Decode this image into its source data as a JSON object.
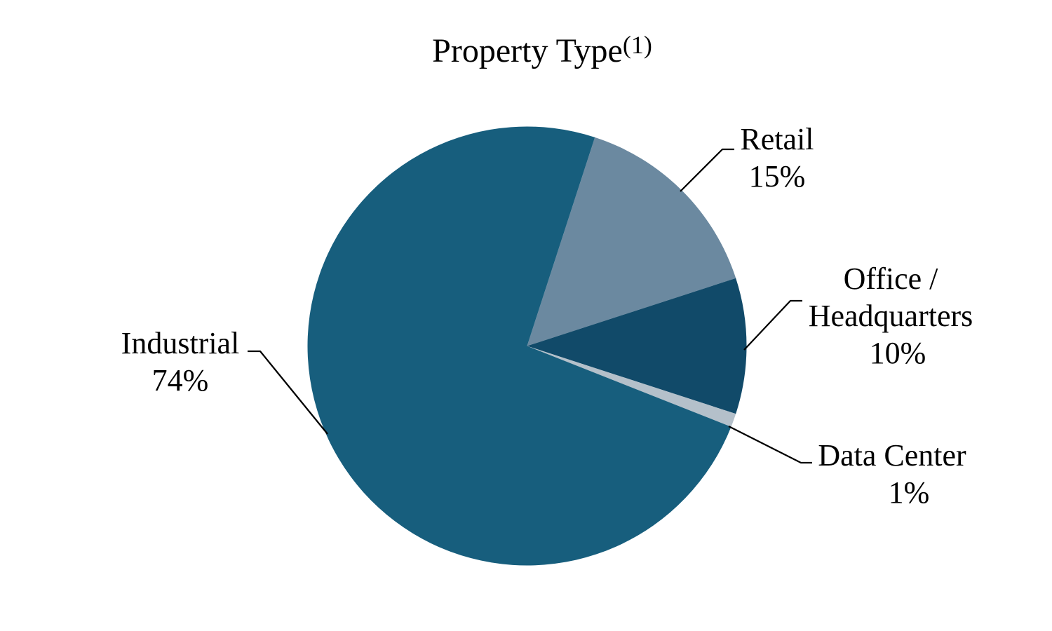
{
  "page": {
    "background_color": "#ffffff",
    "text_color": "#000000"
  },
  "chart_data": {
    "type": "pie",
    "title": "Property Type",
    "title_footnote_marker": "(1)",
    "legend_position": "none",
    "labels_style": "callout-with-leader-lines",
    "start_angle_deg": 18,
    "direction": "clockwise",
    "leader_line_color": "#000000",
    "slices": [
      {
        "name": "Retail",
        "value_pct": 15,
        "color": "#6B89A0",
        "label_lines": [
          "Retail",
          "15%"
        ]
      },
      {
        "name": "Office / Headquarters",
        "value_pct": 10,
        "color": "#114A69",
        "label_lines": [
          "Office /",
          "Headquarters",
          "10%"
        ]
      },
      {
        "name": "Data Center",
        "value_pct": 1,
        "color": "#B4C0CA",
        "label_lines": [
          "Data Center",
          "1%"
        ]
      },
      {
        "name": "Industrial",
        "value_pct": 74,
        "color": "#175E7D",
        "label_lines": [
          "Industrial",
          "74%"
        ]
      }
    ]
  }
}
